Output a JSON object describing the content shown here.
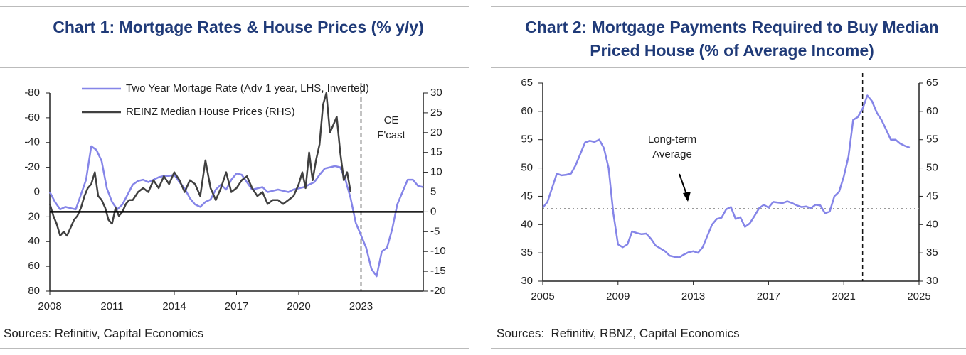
{
  "chart_data": [
    {
      "type": "line",
      "title": "Chart 1: Mortgage Rates & House Prices (% y/y)",
      "source": "Sources: Refinitiv, Capital Economics",
      "xlim": [
        2008,
        2026
      ],
      "xticks": [
        2008,
        2011,
        2014,
        2017,
        2020,
        2023
      ],
      "ylim": [
        80,
        -80
      ],
      "yticks": [
        -80,
        -60,
        -40,
        -20,
        0,
        20,
        40,
        60,
        80
      ],
      "y2lim": [
        -20,
        30
      ],
      "y2ticks": [
        -20,
        -15,
        -10,
        -5,
        0,
        5,
        10,
        15,
        20,
        25,
        30
      ],
      "legend": "upper left",
      "hline_y2": 0,
      "vline": 2023,
      "annotation_lines": [
        "CE",
        "F'cast"
      ],
      "series": [
        {
          "name": "Two Year Mortage Rate (Adv 1 year, LHS, Inverted)",
          "color": "#8585e8",
          "axis": "y",
          "x": [
            2008,
            2008.25,
            2008.5,
            2008.75,
            2009,
            2009.25,
            2009.5,
            2009.75,
            2010,
            2010.25,
            2010.5,
            2010.75,
            2011,
            2011.25,
            2011.5,
            2011.75,
            2012,
            2012.25,
            2012.5,
            2012.75,
            2013,
            2013.25,
            2013.5,
            2013.75,
            2014,
            2014.25,
            2014.5,
            2014.75,
            2015,
            2015.25,
            2015.5,
            2015.75,
            2016,
            2016.25,
            2016.5,
            2016.75,
            2017,
            2017.25,
            2017.5,
            2017.75,
            2018,
            2018.25,
            2018.5,
            2018.75,
            2019,
            2019.25,
            2019.5,
            2019.75,
            2020,
            2020.25,
            2020.5,
            2020.75,
            2021,
            2021.25,
            2021.5,
            2021.75,
            2022,
            2022.25,
            2022.5,
            2022.75,
            2023,
            2023.25,
            2023.5,
            2023.75,
            2024,
            2024.25,
            2024.5,
            2024.75,
            2025,
            2025.25,
            2025.5,
            2025.75,
            2026
          ],
          "values": [
            0,
            8,
            14,
            12,
            13,
            14,
            2,
            -10,
            -37,
            -34,
            -25,
            -3,
            8,
            14,
            10,
            2,
            -6,
            -9,
            -10,
            -8,
            -10,
            -12,
            -13,
            -13,
            -14,
            -8,
            -3,
            5,
            10,
            12,
            8,
            6,
            -2,
            -6,
            -2,
            -10,
            -15,
            -14,
            -8,
            -2,
            -3,
            -4,
            0,
            -1,
            -2,
            -1,
            0,
            -2,
            -3,
            -4,
            -6,
            -8,
            -14,
            -19,
            -20,
            -21,
            -20,
            -10,
            5,
            25,
            35,
            45,
            62,
            68,
            48,
            45,
            30,
            10,
            0,
            -10,
            -10,
            -5,
            -4
          ]
        },
        {
          "name": "REINZ Median House Prices (RHS)",
          "color": "#404040",
          "axis": "y2",
          "x": [
            2008,
            2008.17,
            2008.33,
            2008.5,
            2008.67,
            2008.83,
            2009,
            2009.17,
            2009.33,
            2009.5,
            2009.67,
            2009.83,
            2010,
            2010.17,
            2010.33,
            2010.5,
            2010.67,
            2010.83,
            2011,
            2011.17,
            2011.33,
            2011.5,
            2011.67,
            2011.83,
            2012,
            2012.25,
            2012.5,
            2012.75,
            2013,
            2013.25,
            2013.5,
            2013.75,
            2014,
            2014.25,
            2014.5,
            2014.75,
            2015,
            2015.25,
            2015.5,
            2015.75,
            2016,
            2016.25,
            2016.5,
            2016.75,
            2017,
            2017.25,
            2017.5,
            2017.75,
            2018,
            2018.25,
            2018.5,
            2018.75,
            2019,
            2019.25,
            2019.5,
            2019.75,
            2020,
            2020.17,
            2020.33,
            2020.5,
            2020.67,
            2020.83,
            2021,
            2021.17,
            2021.33,
            2021.5,
            2021.67,
            2021.83,
            2022,
            2022.17,
            2022.33,
            2022.5
          ],
          "values": [
            2,
            -1,
            -3,
            -6,
            -5,
            -6,
            -4,
            -2,
            -1,
            1,
            4,
            6,
            7,
            10,
            4,
            3,
            1,
            -2,
            -3,
            1,
            -1,
            0,
            2,
            3,
            3,
            5,
            6,
            5,
            8,
            6,
            9,
            7,
            10,
            8,
            5,
            8,
            7,
            4,
            13,
            6,
            3,
            6,
            10,
            5,
            6,
            8,
            9,
            6,
            4,
            5,
            2,
            3,
            3,
            2,
            3,
            4,
            7,
            10,
            6,
            15,
            8,
            13,
            17,
            27,
            30,
            20,
            22,
            24,
            15,
            8,
            10,
            5
          ]
        }
      ]
    },
    {
      "type": "line",
      "title": "Chart 2: Mortgage Payments Required to Buy Median Priced House (% of Average Income)",
      "source": "Sources:  Refinitiv, RBNZ, Capital Economics",
      "xlim": [
        2005,
        2025
      ],
      "xticks": [
        2005,
        2009,
        2013,
        2017,
        2021,
        2025
      ],
      "ylim": [
        30,
        65
      ],
      "yticks": [
        30,
        35,
        40,
        45,
        50,
        55,
        60,
        65
      ],
      "y2lim": [
        30,
        65
      ],
      "y2ticks": [
        30,
        35,
        40,
        45,
        50,
        55,
        60,
        65
      ],
      "hline": 42.8,
      "vline": 2022,
      "annotation_lines": [
        "Long-term",
        "Average"
      ],
      "series": [
        {
          "name": null,
          "color": "#8585e8",
          "axis": "y",
          "x": [
            2005,
            2005.25,
            2005.5,
            2005.75,
            2006,
            2006.25,
            2006.5,
            2006.75,
            2007,
            2007.25,
            2007.5,
            2007.75,
            2008,
            2008.25,
            2008.5,
            2008.75,
            2009,
            2009.25,
            2009.5,
            2009.75,
            2010,
            2010.25,
            2010.5,
            2010.75,
            2011,
            2011.25,
            2011.5,
            2011.75,
            2012,
            2012.25,
            2012.5,
            2012.75,
            2013,
            2013.25,
            2013.5,
            2013.75,
            2014,
            2014.25,
            2014.5,
            2014.75,
            2015,
            2015.25,
            2015.5,
            2015.75,
            2016,
            2016.25,
            2016.5,
            2016.75,
            2017,
            2017.25,
            2017.5,
            2017.75,
            2018,
            2018.25,
            2018.5,
            2018.75,
            2019,
            2019.25,
            2019.5,
            2019.75,
            2020,
            2020.25,
            2020.5,
            2020.75,
            2021,
            2021.25,
            2021.5,
            2021.75,
            2022,
            2022.25,
            2022.5,
            2022.75,
            2023,
            2023.25,
            2023.5,
            2023.75,
            2024,
            2024.25,
            2024.5
          ],
          "values": [
            43,
            44,
            46.5,
            49,
            48.7,
            48.8,
            49,
            50.5,
            52.5,
            54.5,
            54.8,
            54.6,
            55,
            53.5,
            50,
            42,
            36.5,
            36,
            36.5,
            38.8,
            38.5,
            38.3,
            38.4,
            37.5,
            36.3,
            35.8,
            35.3,
            34.5,
            34.3,
            34.2,
            34.7,
            35.1,
            35.3,
            35,
            36,
            38,
            40,
            41,
            41.2,
            42.7,
            43.1,
            41,
            41.3,
            39.6,
            40.2,
            41.5,
            42.9,
            43.5,
            43,
            44,
            43.9,
            43.8,
            44.1,
            43.8,
            43.4,
            43.1,
            43.2,
            42.9,
            43.5,
            43.4,
            42,
            42.3,
            45,
            45.8,
            48.5,
            52,
            58.5,
            59,
            60.5,
            62.8,
            61.8,
            59.8,
            58.5,
            56.8,
            55,
            55,
            54.3,
            53.9,
            53.6
          ]
        }
      ]
    }
  ]
}
